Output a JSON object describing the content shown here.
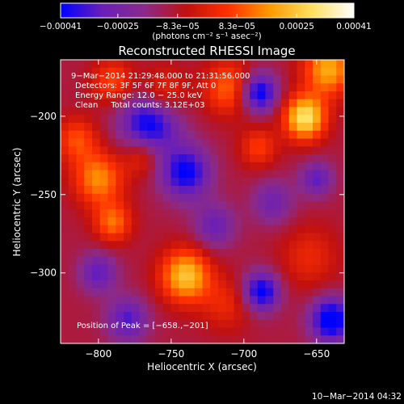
{
  "chart_data": {
    "type": "heatmap",
    "title": "Reconstructed RHESSI Image",
    "xlabel": "Heliocentric X (arcsec)",
    "ylabel": "Heliocentric Y (arcsec)",
    "xlim": [
      -826,
      -631
    ],
    "ylim": [
      -345,
      -164
    ],
    "x_ticks": [
      -800,
      -750,
      -700,
      -650
    ],
    "y_ticks": [
      -200,
      -250,
      -300
    ],
    "x_tick_labels": [
      "−800",
      "−750",
      "−700",
      "−650"
    ],
    "y_tick_labels": [
      "−200",
      "−250",
      "−300"
    ],
    "colorbar": {
      "range": [
        -0.00041,
        0.00041
      ],
      "ticks": [
        -0.00041,
        -0.00025,
        -8.3e-05,
        8.3e-05,
        0.00025,
        0.00041
      ],
      "tick_labels": [
        "−0.00041",
        "−0.00025",
        "−8.3e−05",
        "8.3e−05",
        "0.00025",
        "0.00041"
      ],
      "units": "(photons cm⁻² s⁻¹ asec⁻²)",
      "colors": [
        "#0000ff",
        "#6a1fb8",
        "#8a2a8a",
        "#c01010",
        "#ff3000",
        "#ff9a00",
        "#ffe060",
        "#ffffff"
      ]
    },
    "annotations": {
      "time_range": "9−Mar−2014 21:29:48.000 to 21:31:56.000",
      "detectors": "Detectors: 3F 5F 6F 7F 8F 9F, Att 0",
      "energy": "Energy Range: 12.0 − 25.0 keV",
      "clean": "Clean     Total counts: 3.12E+03",
      "peak": "Position of Peak = [−658.,−201]"
    },
    "blobs": [
      {
        "x": -658,
        "y": -201,
        "sigma": 10,
        "amp": 1.0
      },
      {
        "x": -642,
        "y": -170,
        "sigma": 12,
        "amp": 0.75
      },
      {
        "x": -740,
        "y": -302,
        "sigma": 12,
        "amp": 0.85
      },
      {
        "x": -800,
        "y": -240,
        "sigma": 12,
        "amp": 0.65
      },
      {
        "x": -790,
        "y": -268,
        "sigma": 9,
        "amp": 0.55
      },
      {
        "x": -815,
        "y": -215,
        "sigma": 10,
        "amp": 0.45
      },
      {
        "x": -770,
        "y": -225,
        "sigma": 9,
        "amp": 0.4
      },
      {
        "x": -755,
        "y": -185,
        "sigma": 11,
        "amp": 0.4
      },
      {
        "x": -710,
        "y": -182,
        "sigma": 12,
        "amp": 0.55
      },
      {
        "x": -690,
        "y": -220,
        "sigma": 9,
        "amp": 0.4
      },
      {
        "x": -655,
        "y": -290,
        "sigma": 14,
        "amp": 0.3
      },
      {
        "x": -712,
        "y": -320,
        "sigma": 12,
        "amp": 0.3
      },
      {
        "x": -790,
        "y": -178,
        "sigma": 10,
        "amp": 0.45
      },
      {
        "x": -690,
        "y": -185,
        "sigma": 9,
        "amp": -0.85
      },
      {
        "x": -765,
        "y": -205,
        "sigma": 14,
        "amp": -0.8
      },
      {
        "x": -740,
        "y": -236,
        "sigma": 12,
        "amp": -0.75
      },
      {
        "x": -688,
        "y": -312,
        "sigma": 9,
        "amp": -0.8
      },
      {
        "x": -640,
        "y": -330,
        "sigma": 10,
        "amp": -0.9
      },
      {
        "x": -780,
        "y": -330,
        "sigma": 10,
        "amp": -0.55
      },
      {
        "x": -800,
        "y": -300,
        "sigma": 9,
        "amp": -0.5
      },
      {
        "x": -720,
        "y": -270,
        "sigma": 10,
        "amp": -0.45
      },
      {
        "x": -680,
        "y": -255,
        "sigma": 10,
        "amp": -0.4
      },
      {
        "x": -650,
        "y": -240,
        "sigma": 8,
        "amp": -0.5
      }
    ],
    "background_level": -0.25
  },
  "footer": {
    "timestamp": "10−Mar−2014 04:32"
  }
}
